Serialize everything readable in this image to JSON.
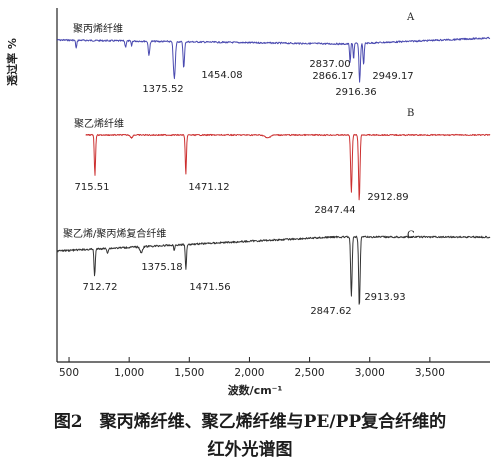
{
  "chart_data": {
    "type": "line",
    "ylabel": "透过率 %",
    "xlabel": "波数/cm⁻¹",
    "xlim": [
      400,
      4000
    ],
    "x_ticks": [
      500,
      1000,
      1500,
      2000,
      2500,
      3000,
      3500
    ],
    "x_tick_labels": [
      "500",
      "1,000",
      "1,500",
      "2,000",
      "2,500",
      "3,000",
      "3,500"
    ],
    "grid": false,
    "series": [
      {
        "name": "聚丙烯纤维",
        "letter": "A",
        "color": "#4a4ab0",
        "peaks": [
          {
            "x": 1375.52,
            "label": "1375.52"
          },
          {
            "x": 1454.08,
            "label": "1454.08"
          },
          {
            "x": 2837.0,
            "label": "2837.00"
          },
          {
            "x": 2866.17,
            "label": "2866.17"
          },
          {
            "x": 2916.36,
            "label": "2916.36"
          },
          {
            "x": 2949.17,
            "label": "2949.17"
          }
        ]
      },
      {
        "name": "聚乙烯纤维",
        "letter": "B",
        "color": "#cc3030",
        "peaks": [
          {
            "x": 715.51,
            "label": "715.51"
          },
          {
            "x": 1471.12,
            "label": "1471.12"
          },
          {
            "x": 2847.44,
            "label": "2847.44"
          },
          {
            "x": 2912.89,
            "label": "2912.89"
          }
        ]
      },
      {
        "name": "聚乙烯/聚丙烯复合纤维",
        "letter": "C",
        "color": "#333333",
        "peaks": [
          {
            "x": 712.72,
            "label": "712.72"
          },
          {
            "x": 1375.18,
            "label": "1375.18"
          },
          {
            "x": 1471.56,
            "label": "1471.56"
          },
          {
            "x": 2847.62,
            "label": "2847.62"
          },
          {
            "x": 2913.93,
            "label": "2913.93"
          }
        ]
      }
    ]
  },
  "caption": {
    "line1": "图2　聚丙烯纤维、聚乙烯纤维与PE/PP复合纤维的",
    "line2": "红外光谱图"
  }
}
